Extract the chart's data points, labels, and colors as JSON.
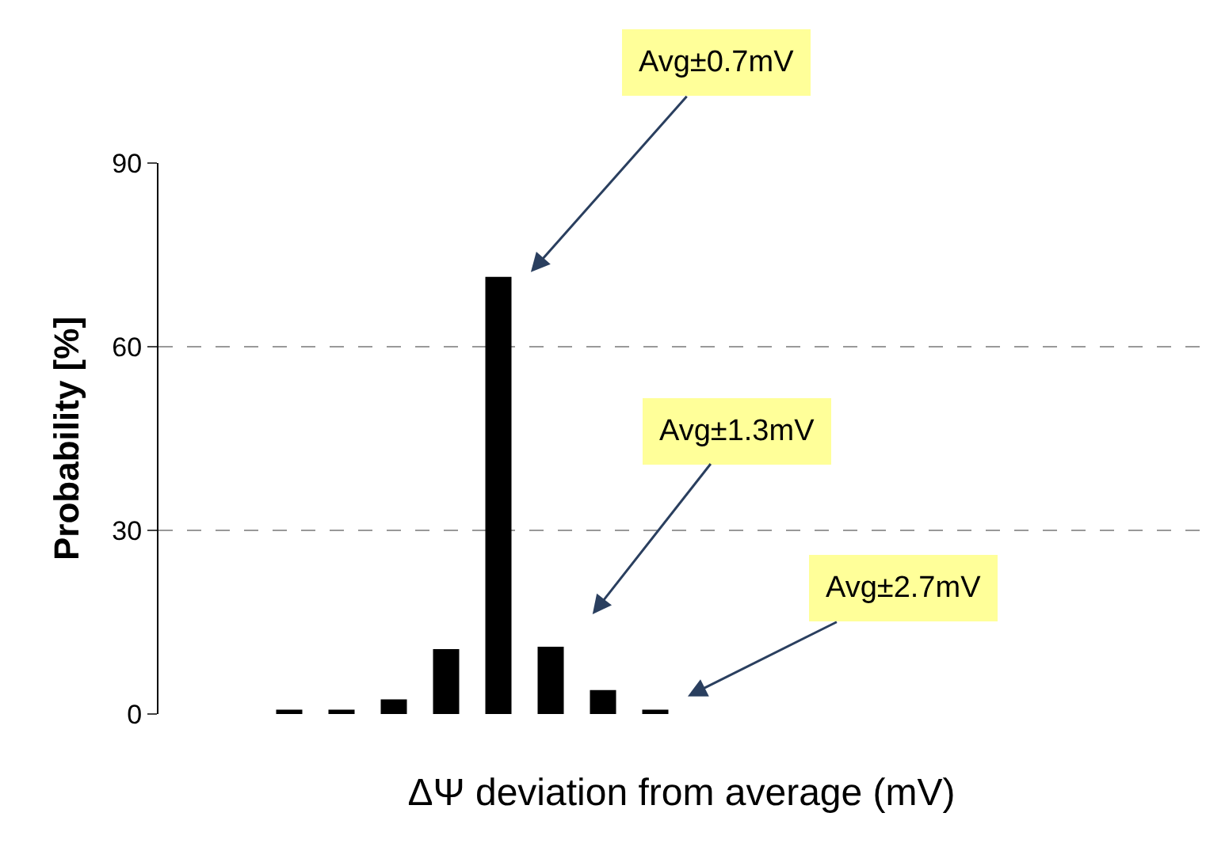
{
  "chart_data": {
    "type": "bar",
    "xlabel": "ΔΨ deviation from average (mV)",
    "ylabel": "Probability [%]",
    "categories": [
      null,
      null,
      null,
      null,
      null,
      null,
      null,
      null,
      null,
      null,
      null,
      null,
      null,
      null,
      null,
      null,
      null,
      null,
      null,
      null
    ],
    "values": [
      null,
      null,
      0.7,
      0.7,
      2.4,
      10.6,
      71.4,
      11.0,
      3.9,
      0.7,
      null,
      null,
      null,
      null,
      null,
      null,
      null,
      null,
      null,
      null
    ],
    "color": "#000000",
    "ylim": [
      0,
      90
    ],
    "yticks": [
      0,
      30,
      60,
      90
    ],
    "grid": "y",
    "annotations": [
      "Avg±0.7mV",
      "Avg±1.3mV",
      "Avg±2.7mV"
    ]
  }
}
